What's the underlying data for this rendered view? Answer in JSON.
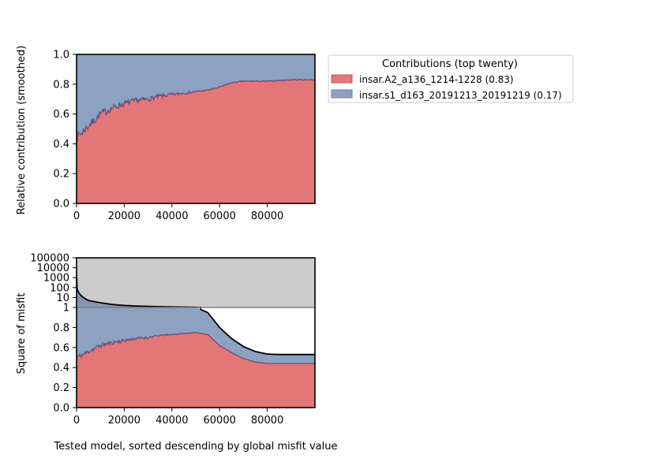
{
  "chart_data": [
    {
      "type": "area",
      "stacked": true,
      "ylabel": "Relative contribution (smoothed)",
      "xlabel": "",
      "xlim": [
        0,
        100000
      ],
      "ylim": [
        0,
        1.0
      ],
      "xticks": [
        "0",
        "20000",
        "40000",
        "60000",
        "80000"
      ],
      "yticks": [
        "0.0",
        "0.2",
        "0.4",
        "0.6",
        "0.8",
        "1.0"
      ],
      "x": [
        0,
        5000,
        10000,
        15000,
        20000,
        25000,
        30000,
        35000,
        40000,
        45000,
        50000,
        55000,
        60000,
        65000,
        70000,
        75000,
        80000,
        85000,
        90000,
        95000,
        100000
      ],
      "series": [
        {
          "name": "insar.A2_a136_1214-1228 (0.83)",
          "color": "#e37777",
          "values": [
            0.44,
            0.52,
            0.6,
            0.64,
            0.67,
            0.69,
            0.7,
            0.72,
            0.73,
            0.74,
            0.75,
            0.76,
            0.78,
            0.81,
            0.82,
            0.82,
            0.82,
            0.825,
            0.83,
            0.83,
            0.83
          ]
        },
        {
          "name": "insar.s1_d163_20191213_20191219 (0.17)",
          "color": "#8da2c0",
          "values": [
            0.56,
            0.48,
            0.4,
            0.36,
            0.33,
            0.31,
            0.3,
            0.28,
            0.27,
            0.26,
            0.25,
            0.24,
            0.22,
            0.19,
            0.18,
            0.18,
            0.18,
            0.175,
            0.17,
            0.17,
            0.17
          ]
        }
      ],
      "legend": {
        "title": "Contributions (top twenty)",
        "placement": "outside upper right"
      }
    },
    {
      "type": "area",
      "stacked": true,
      "ylabel": "Square of misfit",
      "xlabel": "Tested model, sorted descending by global misfit value",
      "xlim": [
        0,
        100000
      ],
      "xticks": [
        "0",
        "20000",
        "40000",
        "60000",
        "80000"
      ],
      "yticks_upper_log": [
        "1",
        "10",
        "100",
        "1000",
        "10000",
        "100000"
      ],
      "yticks_lower_linear": [
        "0.0",
        "0.2",
        "0.4",
        "0.6",
        "0.8",
        "1"
      ],
      "ylim_lower": [
        0,
        1
      ],
      "ylim_upper_log": [
        1,
        100000
      ],
      "x": [
        0,
        5000,
        10000,
        15000,
        20000,
        25000,
        30000,
        35000,
        40000,
        45000,
        50000,
        55000,
        60000,
        65000,
        70000,
        75000,
        80000,
        85000,
        90000,
        95000,
        100000
      ],
      "global_misfit_upper": [
        300,
        5,
        3,
        2,
        1.6,
        1.4,
        1.3,
        1.2,
        1.15,
        1.1,
        1.05,
        null,
        null,
        null,
        null,
        null,
        null,
        null,
        null,
        null,
        null
      ],
      "total_misfit": [
        1,
        1,
        1,
        1,
        1,
        1,
        1,
        1,
        1,
        1,
        1,
        0.95,
        0.8,
        0.69,
        0.61,
        0.56,
        0.535,
        0.53,
        0.53,
        0.53,
        0.53
      ],
      "series": [
        {
          "name": "insar.A2_a136_1214-1228",
          "color": "#e37777",
          "values": [
            0.5,
            0.56,
            0.62,
            0.65,
            0.67,
            0.69,
            0.7,
            0.72,
            0.73,
            0.74,
            0.75,
            0.73,
            0.62,
            0.55,
            0.49,
            0.455,
            0.44,
            0.44,
            0.44,
            0.44,
            0.44
          ]
        },
        {
          "name": "insar.s1_d163_20191213_20191219",
          "color": "#8da2c0",
          "values": [
            0.5,
            0.44,
            0.38,
            0.35,
            0.33,
            0.31,
            0.3,
            0.28,
            0.27,
            0.26,
            0.25,
            0.22,
            0.18,
            0.14,
            0.12,
            0.105,
            0.095,
            0.09,
            0.09,
            0.09,
            0.09
          ]
        }
      ]
    }
  ]
}
